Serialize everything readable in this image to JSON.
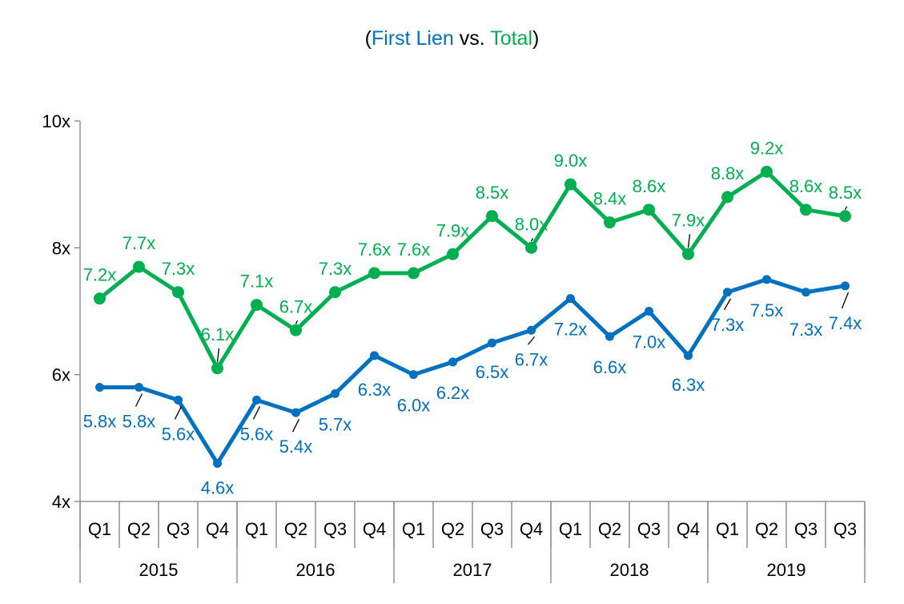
{
  "chart_data": {
    "type": "line",
    "title": {
      "open_paren": "(",
      "part1": "First Lien",
      "sep": " vs. ",
      "part2": "Total",
      "close_paren": ")"
    },
    "categories": [
      "Q1",
      "Q2",
      "Q3",
      "Q4",
      "Q1",
      "Q2",
      "Q3",
      "Q4",
      "Q1",
      "Q2",
      "Q3",
      "Q4",
      "Q1",
      "Q2",
      "Q3",
      "Q4",
      "Q1",
      "Q2",
      "Q3",
      "Q3"
    ],
    "years": [
      {
        "label": "2015",
        "span": 4
      },
      {
        "label": "2016",
        "span": 4
      },
      {
        "label": "2017",
        "span": 4
      },
      {
        "label": "2018",
        "span": 4
      },
      {
        "label": "2019",
        "span": 4
      }
    ],
    "y_ticks": [
      {
        "value": 4,
        "label": "4x"
      },
      {
        "value": 6,
        "label": "6x"
      },
      {
        "value": 8,
        "label": "8x"
      },
      {
        "value": 10,
        "label": "10x"
      }
    ],
    "ylim": [
      4,
      10
    ],
    "grid": false,
    "series": [
      {
        "name": "Total",
        "color": "#00b050",
        "values": [
          7.2,
          7.7,
          7.3,
          6.1,
          7.1,
          6.7,
          7.3,
          7.6,
          7.6,
          7.9,
          8.5,
          8.0,
          9.0,
          8.4,
          8.6,
          7.9,
          8.8,
          9.2,
          8.6,
          8.5
        ],
        "labels": [
          "7.2x",
          "7.7x",
          "7.3x",
          "6.1x",
          "7.1x",
          "6.7x",
          "7.3x",
          "7.6x",
          "7.6x",
          "7.9x",
          "8.5x",
          "8.0x",
          "9.0x",
          "8.4x",
          "8.6x",
          "7.9x",
          "8.8x",
          "9.2x",
          "8.6x",
          "8.5x"
        ]
      },
      {
        "name": "First Lien",
        "color": "#0070c0",
        "values": [
          5.8,
          5.8,
          5.6,
          4.6,
          5.6,
          5.4,
          5.7,
          6.3,
          6.0,
          6.2,
          6.5,
          6.7,
          7.2,
          6.6,
          7.0,
          6.3,
          7.3,
          7.5,
          7.3,
          7.4
        ],
        "labels": [
          "5.8x",
          "5.8x",
          "5.6x",
          "4.6x",
          "5.6x",
          "5.4x",
          "5.7x",
          "6.3x",
          "6.0x",
          "6.2x",
          "6.5x",
          "6.7x",
          "7.2x",
          "6.6x",
          "7.0x",
          "6.3x",
          "7.3x",
          "7.5x",
          "7.3x",
          "7.4x"
        ]
      }
    ]
  }
}
